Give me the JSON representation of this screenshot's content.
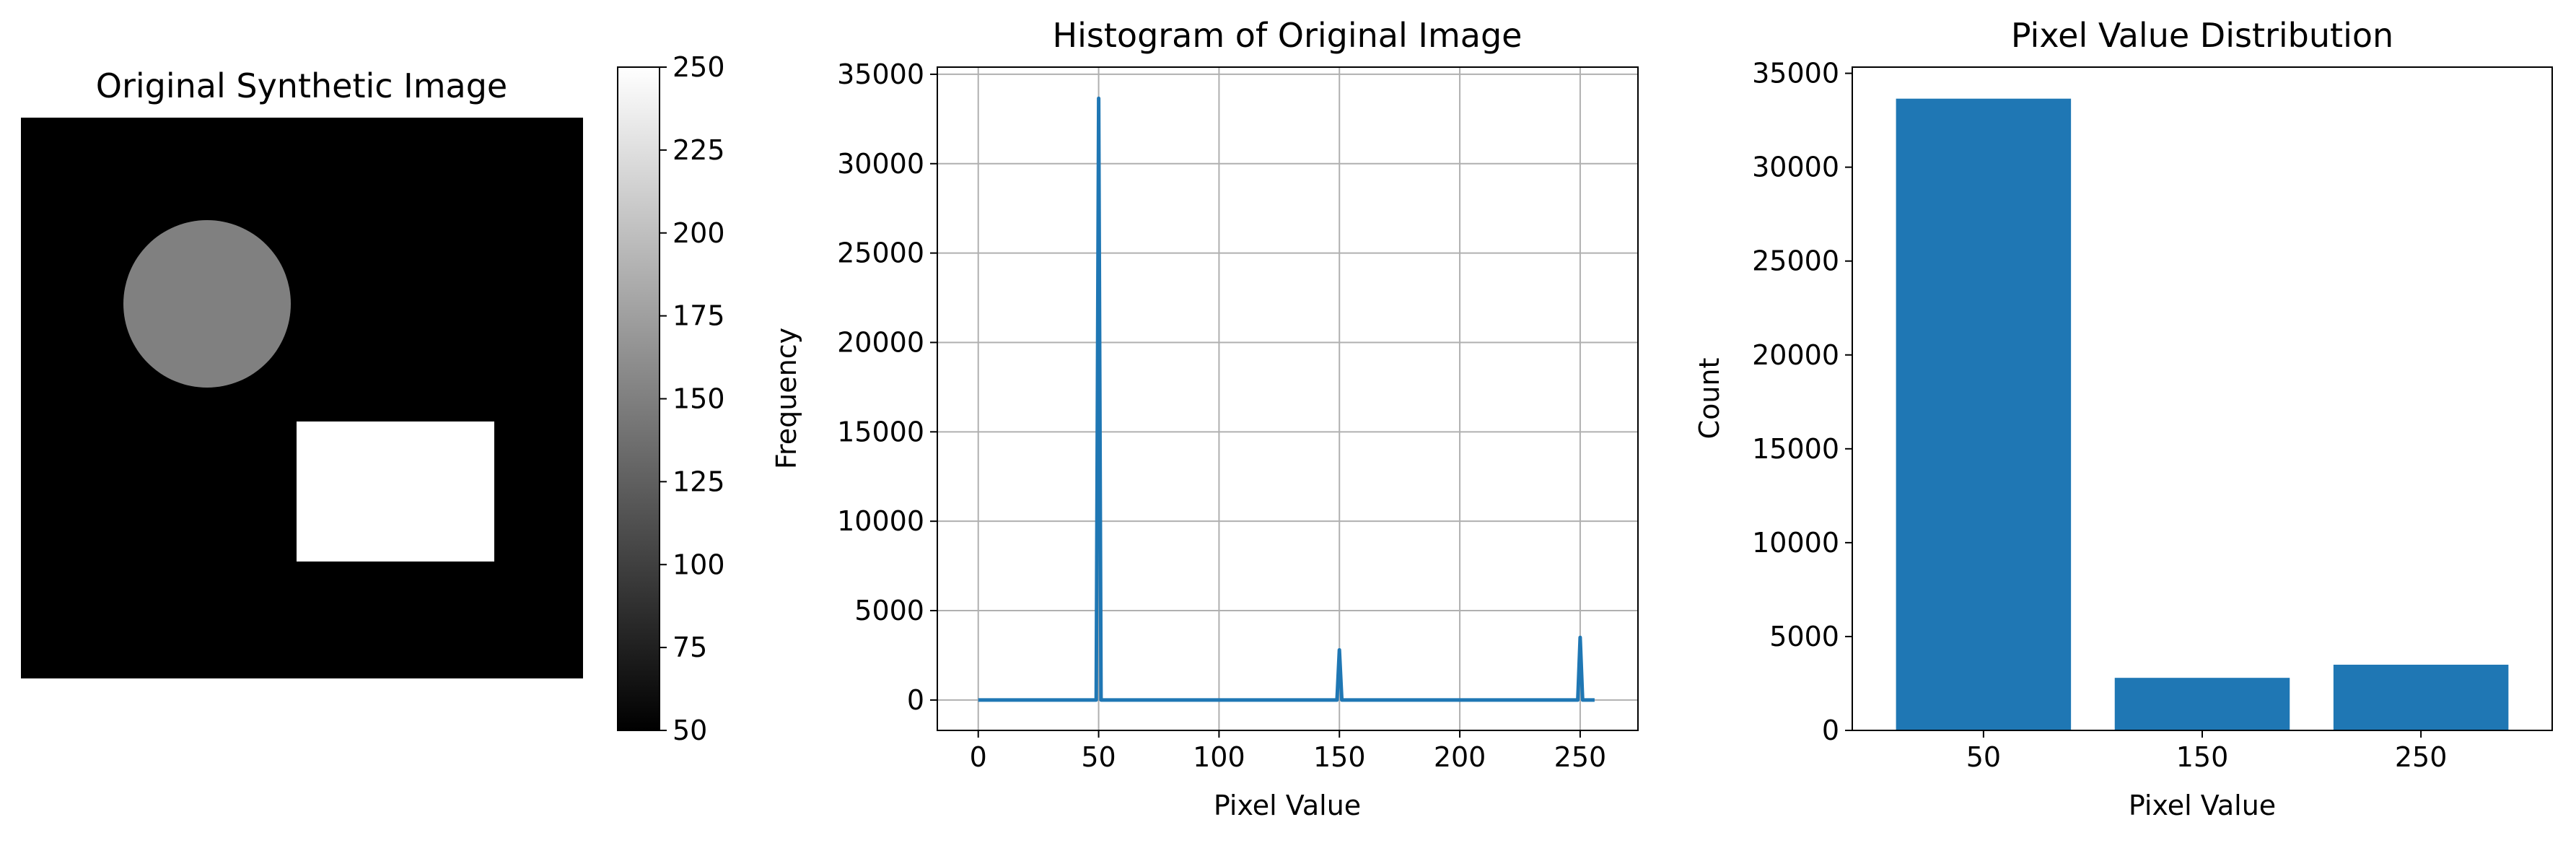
{
  "chart_data": [
    {
      "type": "image",
      "title": "Original Synthetic Image",
      "background_value": 50,
      "shapes": [
        {
          "kind": "circle",
          "value": 150
        },
        {
          "kind": "rectangle",
          "value": 250
        }
      ],
      "colorbar": {
        "cmap": "gray",
        "range": [
          50,
          250
        ],
        "ticks": [
          50,
          75,
          100,
          125,
          150,
          175,
          200,
          225,
          250
        ]
      }
    },
    {
      "type": "line",
      "title": "Histogram of Original Image",
      "xlabel": "Pixel Value",
      "ylabel": "Frequency",
      "xlim": [
        -17,
        274
      ],
      "ylim": [
        -1700,
        35400
      ],
      "xticks": [
        0,
        50,
        100,
        150,
        200,
        250
      ],
      "yticks": [
        0,
        5000,
        10000,
        15000,
        20000,
        25000,
        30000,
        35000
      ],
      "grid": true,
      "color": "#1f77b4",
      "series": [
        {
          "x": [
            0,
            49,
            50,
            51,
            149,
            150,
            151,
            249,
            250,
            251,
            256
          ],
          "values": [
            0,
            0,
            33650,
            0,
            0,
            2800,
            0,
            0,
            3500,
            0,
            0
          ]
        }
      ]
    },
    {
      "type": "bar",
      "title": "Pixel Value Distribution",
      "xlabel": "Pixel Value",
      "ylabel": "Count",
      "categories": [
        "50",
        "150",
        "250"
      ],
      "values": [
        33650,
        2800,
        3500
      ],
      "ylim": [
        0,
        35330
      ],
      "yticks": [
        0,
        5000,
        10000,
        15000,
        20000,
        25000,
        30000,
        35000
      ],
      "grid": false,
      "color": "#1f77b4"
    }
  ]
}
